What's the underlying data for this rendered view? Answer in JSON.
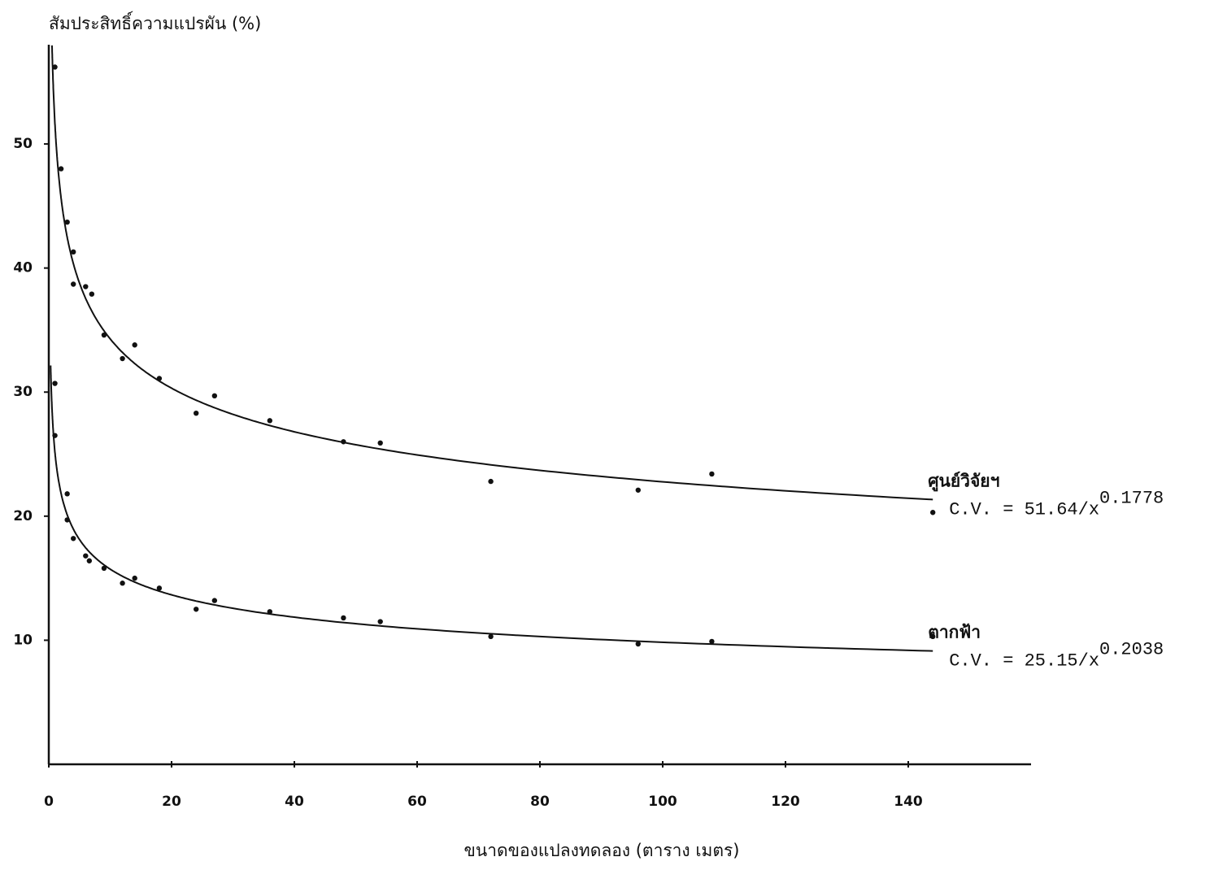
{
  "chart_data": {
    "type": "scatter",
    "y_label": "สัมประสิทธิ์ความแปรผัน (%)",
    "x_label": "ขนาดของแปลงทดลอง (ตาราง เมตร)",
    "xlim": [
      0,
      160
    ],
    "xticks": [
      0,
      20,
      40,
      60,
      80,
      100,
      120,
      140
    ],
    "ylim": [
      0,
      58
    ],
    "yticks": [
      10,
      20,
      30,
      40,
      50
    ],
    "color": "#111111",
    "series": [
      {
        "name": "ศูนย์วิจัยฯ",
        "equation_label": "C.V. = 51.64/x",
        "fit_coefficient": 51.64,
        "fit_exponent": 0.1778,
        "x": [
          1,
          2,
          3,
          4,
          4,
          6,
          7,
          9,
          12,
          14,
          18,
          24,
          27,
          36,
          48,
          54,
          72,
          96,
          108,
          144
        ],
        "values": [
          56.2,
          48.0,
          43.7,
          41.3,
          38.7,
          38.5,
          37.9,
          34.6,
          32.7,
          33.8,
          31.1,
          28.3,
          29.7,
          27.7,
          26.0,
          25.9,
          22.8,
          22.1,
          23.4,
          20.3
        ]
      },
      {
        "name": "ตากฟ้า",
        "equation_label": "C.V. = 25.15/x",
        "fit_coefficient": 25.15,
        "fit_exponent": 0.2038,
        "x": [
          1,
          1,
          3,
          3,
          4,
          6,
          6.6,
          9,
          12,
          14,
          18,
          24,
          27,
          36,
          48,
          54,
          72,
          96,
          108,
          144
        ],
        "values": [
          30.7,
          26.5,
          21.8,
          19.7,
          18.2,
          16.8,
          16.4,
          15.8,
          14.6,
          15.0,
          14.2,
          12.5,
          13.2,
          12.3,
          11.8,
          11.5,
          10.3,
          9.7,
          9.9,
          10.3
        ]
      }
    ]
  }
}
